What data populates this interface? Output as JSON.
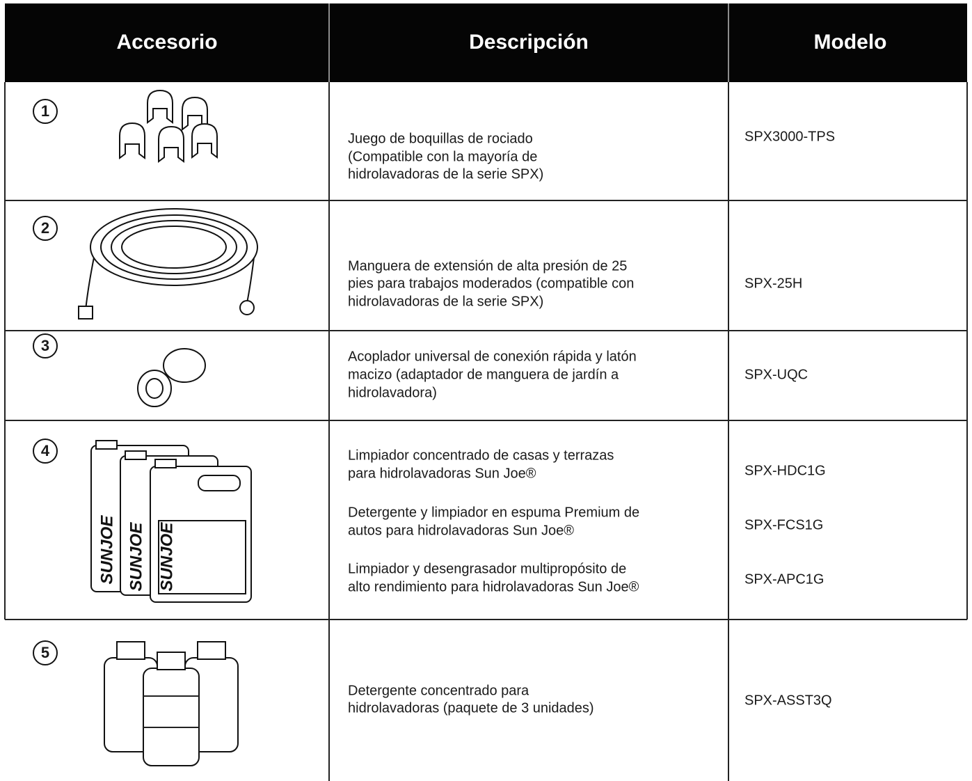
{
  "header": {
    "columns": [
      "Accesorio",
      "Descripción",
      "Modelo"
    ]
  },
  "rows": [
    {
      "number": "1",
      "items": [
        {
          "description": [
            "Juego de boquillas de rociado",
            "(Compatible con la mayoría de",
            "hidrolavadoras de la serie SPX)"
          ],
          "model": "SPX3000-TPS"
        }
      ]
    },
    {
      "number": "2",
      "items": [
        {
          "description": [
            "Manguera de extensión de alta presión de 25",
            "pies para trabajos moderados (compatible con",
            "hidrolavadoras de la serie SPX)"
          ],
          "model": "SPX-25H"
        }
      ]
    },
    {
      "number": "3",
      "items": [
        {
          "description": [
            "Acoplador universal de conexión rápida y latón",
            "macizo (adaptador de manguera de jardín a",
            "hidrolavadora)"
          ],
          "model": "SPX-UQC"
        }
      ]
    },
    {
      "number": "4",
      "brand_label": "SUNJOE",
      "items": [
        {
          "description": [
            "Limpiador concentrado de casas y terrazas",
            "para hidrolavadoras Sun Joe®"
          ],
          "model": "SPX-HDC1G"
        },
        {
          "description": [
            "Detergente y limpiador en espuma Premium de",
            "autos para hidrolavadoras Sun Joe®"
          ],
          "model": "SPX-FCS1G"
        },
        {
          "description": [
            "Limpiador y desengrasador multipropósito de",
            "alto rendimiento para hidrolavadoras Sun Joe®"
          ],
          "model": "SPX-APC1G"
        }
      ]
    },
    {
      "number": "5",
      "items": [
        {
          "description": [
            "Detergente concentrado para",
            "hidrolavadoras (paquete de 3 unidades)"
          ],
          "model": "SPX-ASST3Q"
        }
      ]
    }
  ]
}
